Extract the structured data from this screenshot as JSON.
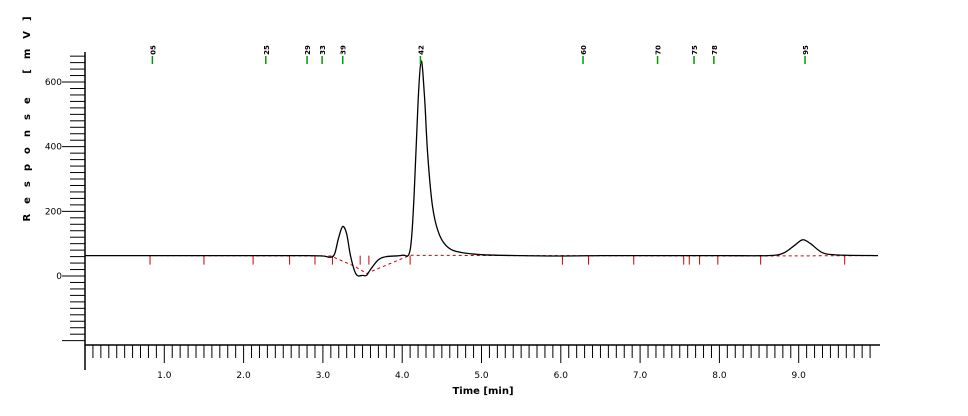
{
  "chart_data": {
    "type": "line",
    "xlabel": "Time [min]",
    "ylabel": "Response [mV]",
    "xlim": [
      0,
      10
    ],
    "ylim": [
      -250,
      700
    ],
    "x_ticks": [
      1.0,
      2.0,
      3.0,
      4.0,
      5.0,
      6.0,
      7.0,
      8.0,
      9.0
    ],
    "y_ticks": [
      0,
      200,
      400,
      600
    ],
    "grid": false,
    "legend": "none",
    "series": [
      {
        "color": "#000000",
        "points": [
          [
            0.0,
            63
          ],
          [
            1.0,
            63
          ],
          [
            2.0,
            63
          ],
          [
            2.8,
            63
          ],
          [
            3.0,
            62
          ],
          [
            3.1,
            58
          ],
          [
            3.15,
            70
          ],
          [
            3.2,
            120
          ],
          [
            3.25,
            153
          ],
          [
            3.3,
            130
          ],
          [
            3.35,
            60
          ],
          [
            3.42,
            5
          ],
          [
            3.5,
            2
          ],
          [
            3.55,
            2
          ],
          [
            3.6,
            20
          ],
          [
            3.7,
            50
          ],
          [
            3.8,
            60
          ],
          [
            4.0,
            64
          ],
          [
            4.1,
            80
          ],
          [
            4.15,
            250
          ],
          [
            4.2,
            540
          ],
          [
            4.24,
            665
          ],
          [
            4.28,
            560
          ],
          [
            4.32,
            380
          ],
          [
            4.38,
            220
          ],
          [
            4.45,
            140
          ],
          [
            4.55,
            95
          ],
          [
            4.7,
            75
          ],
          [
            5.0,
            66
          ],
          [
            5.5,
            63
          ],
          [
            6.0,
            62
          ],
          [
            6.5,
            63
          ],
          [
            7.0,
            63
          ],
          [
            8.0,
            63
          ],
          [
            8.6,
            63
          ],
          [
            8.8,
            70
          ],
          [
            8.95,
            95
          ],
          [
            9.05,
            112
          ],
          [
            9.15,
            100
          ],
          [
            9.3,
            72
          ],
          [
            9.5,
            65
          ],
          [
            10.0,
            63
          ]
        ]
      }
    ],
    "baseline_segments": [
      {
        "color": "#cc0000",
        "dashed": true,
        "points": [
          [
            0.8,
            63
          ],
          [
            3.1,
            62
          ],
          [
            3.4,
            30
          ],
          [
            3.55,
            8
          ],
          [
            4.1,
            64
          ],
          [
            5.5,
            63
          ],
          [
            8.5,
            62
          ],
          [
            10.0,
            63
          ]
        ]
      }
    ],
    "baseline_marks": [
      0.82,
      1.5,
      2.12,
      2.58,
      2.9,
      3.12,
      3.47,
      3.58,
      4.1,
      6.02,
      6.35,
      6.92,
      7.55,
      7.62,
      7.75,
      7.98,
      8.52,
      9.58
    ],
    "peak_markers": [
      {
        "x": 0.85,
        "label": "05"
      },
      {
        "x": 2.28,
        "label": "25"
      },
      {
        "x": 2.8,
        "label": "29"
      },
      {
        "x": 2.99,
        "label": "33"
      },
      {
        "x": 3.25,
        "label": "39"
      },
      {
        "x": 4.23,
        "label": "42"
      },
      {
        "x": 6.28,
        "label": "60"
      },
      {
        "x": 7.22,
        "label": "70"
      },
      {
        "x": 7.68,
        "label": "75"
      },
      {
        "x": 7.93,
        "label": "78"
      },
      {
        "x": 9.08,
        "label": "95"
      }
    ]
  }
}
